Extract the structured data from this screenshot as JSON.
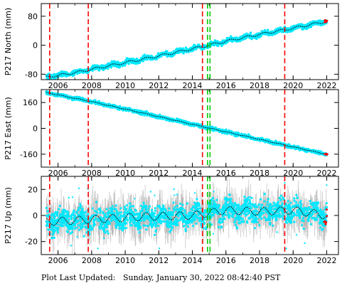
{
  "chart_data": [
    {
      "type": "scatter",
      "ylabel": "P217 North (mm)",
      "xlim": [
        2005.0,
        2022.7
      ],
      "ylim": [
        -95,
        115
      ],
      "x_ticks": [
        2006,
        2008,
        2010,
        2012,
        2014,
        2016,
        2018,
        2020,
        2022
      ],
      "x_tick_labels": [
        "2006",
        "2008",
        "2010",
        "2012",
        "2014",
        "2016",
        "2018",
        "2020",
        "2022"
      ],
      "y_ticks": [
        -80,
        0,
        80
      ],
      "y_tick_labels": [
        "-80",
        "0",
        "80"
      ],
      "series": [
        {
          "x": [
            2005.3,
            2007.0,
            2009.0,
            2011.0,
            2013.0,
            2014.8,
            2016.0,
            2018.0,
            2020.0,
            2022.0
          ],
          "values": [
            -88,
            -76,
            -57,
            -39,
            -20,
            -2,
            11,
            30,
            47,
            66
          ]
        }
      ]
    },
    {
      "type": "scatter",
      "ylabel": "P217 East (mm)",
      "xlim": [
        2005.0,
        2022.7
      ],
      "ylim": [
        -240,
        240
      ],
      "x_ticks": [
        2006,
        2008,
        2010,
        2012,
        2014,
        2016,
        2018,
        2020,
        2022
      ],
      "x_tick_labels": [
        "2006",
        "2008",
        "2010",
        "2012",
        "2014",
        "2016",
        "2018",
        "2020",
        "2022"
      ],
      "y_ticks": [
        -160,
        0,
        160
      ],
      "y_tick_labels": [
        "-160",
        "0",
        "160"
      ],
      "series": [
        {
          "x": [
            2005.3,
            2008.0,
            2011.0,
            2014.0,
            2017.0,
            2020.0,
            2022.0
          ],
          "values": [
            222,
            165,
            96,
            25,
            -45,
            -115,
            -161
          ]
        }
      ]
    },
    {
      "type": "scatter",
      "ylabel": "P217 Up (mm)",
      "xlim": [
        2005.0,
        2022.7
      ],
      "ylim": [
        -30,
        30
      ],
      "x_ticks": [
        2006,
        2008,
        2010,
        2012,
        2014,
        2016,
        2018,
        2020,
        2022
      ],
      "x_tick_labels": [
        "2006",
        "2008",
        "2010",
        "2012",
        "2014",
        "2016",
        "2018",
        "2020",
        "2022"
      ],
      "y_ticks": [
        -20,
        0,
        20
      ],
      "y_tick_labels": [
        "-20",
        "0",
        "20"
      ],
      "series": [
        {
          "x": [
            2005.3,
            2008.0,
            2011.0,
            2014.0,
            2016.0,
            2018.0,
            2020.0,
            2022.0
          ],
          "values": [
            -5,
            -3,
            -1,
            0,
            4,
            3,
            4,
            0
          ]
        }
      ]
    }
  ],
  "events": {
    "red_dashed_years": [
      2005.5,
      2007.8,
      2014.6,
      2019.5
    ],
    "green_dashed_years": [
      2014.9,
      2015.05
    ]
  },
  "colors": {
    "data_fill": "#00e8ff",
    "model_line": "#000000",
    "error_bars": "#b4b4b4",
    "event_red": "#ff0000",
    "event_green": "#00cc00"
  },
  "footer": {
    "text": "Plot Last Updated:   Sunday, January 30, 2022 08:42:40 PST"
  }
}
